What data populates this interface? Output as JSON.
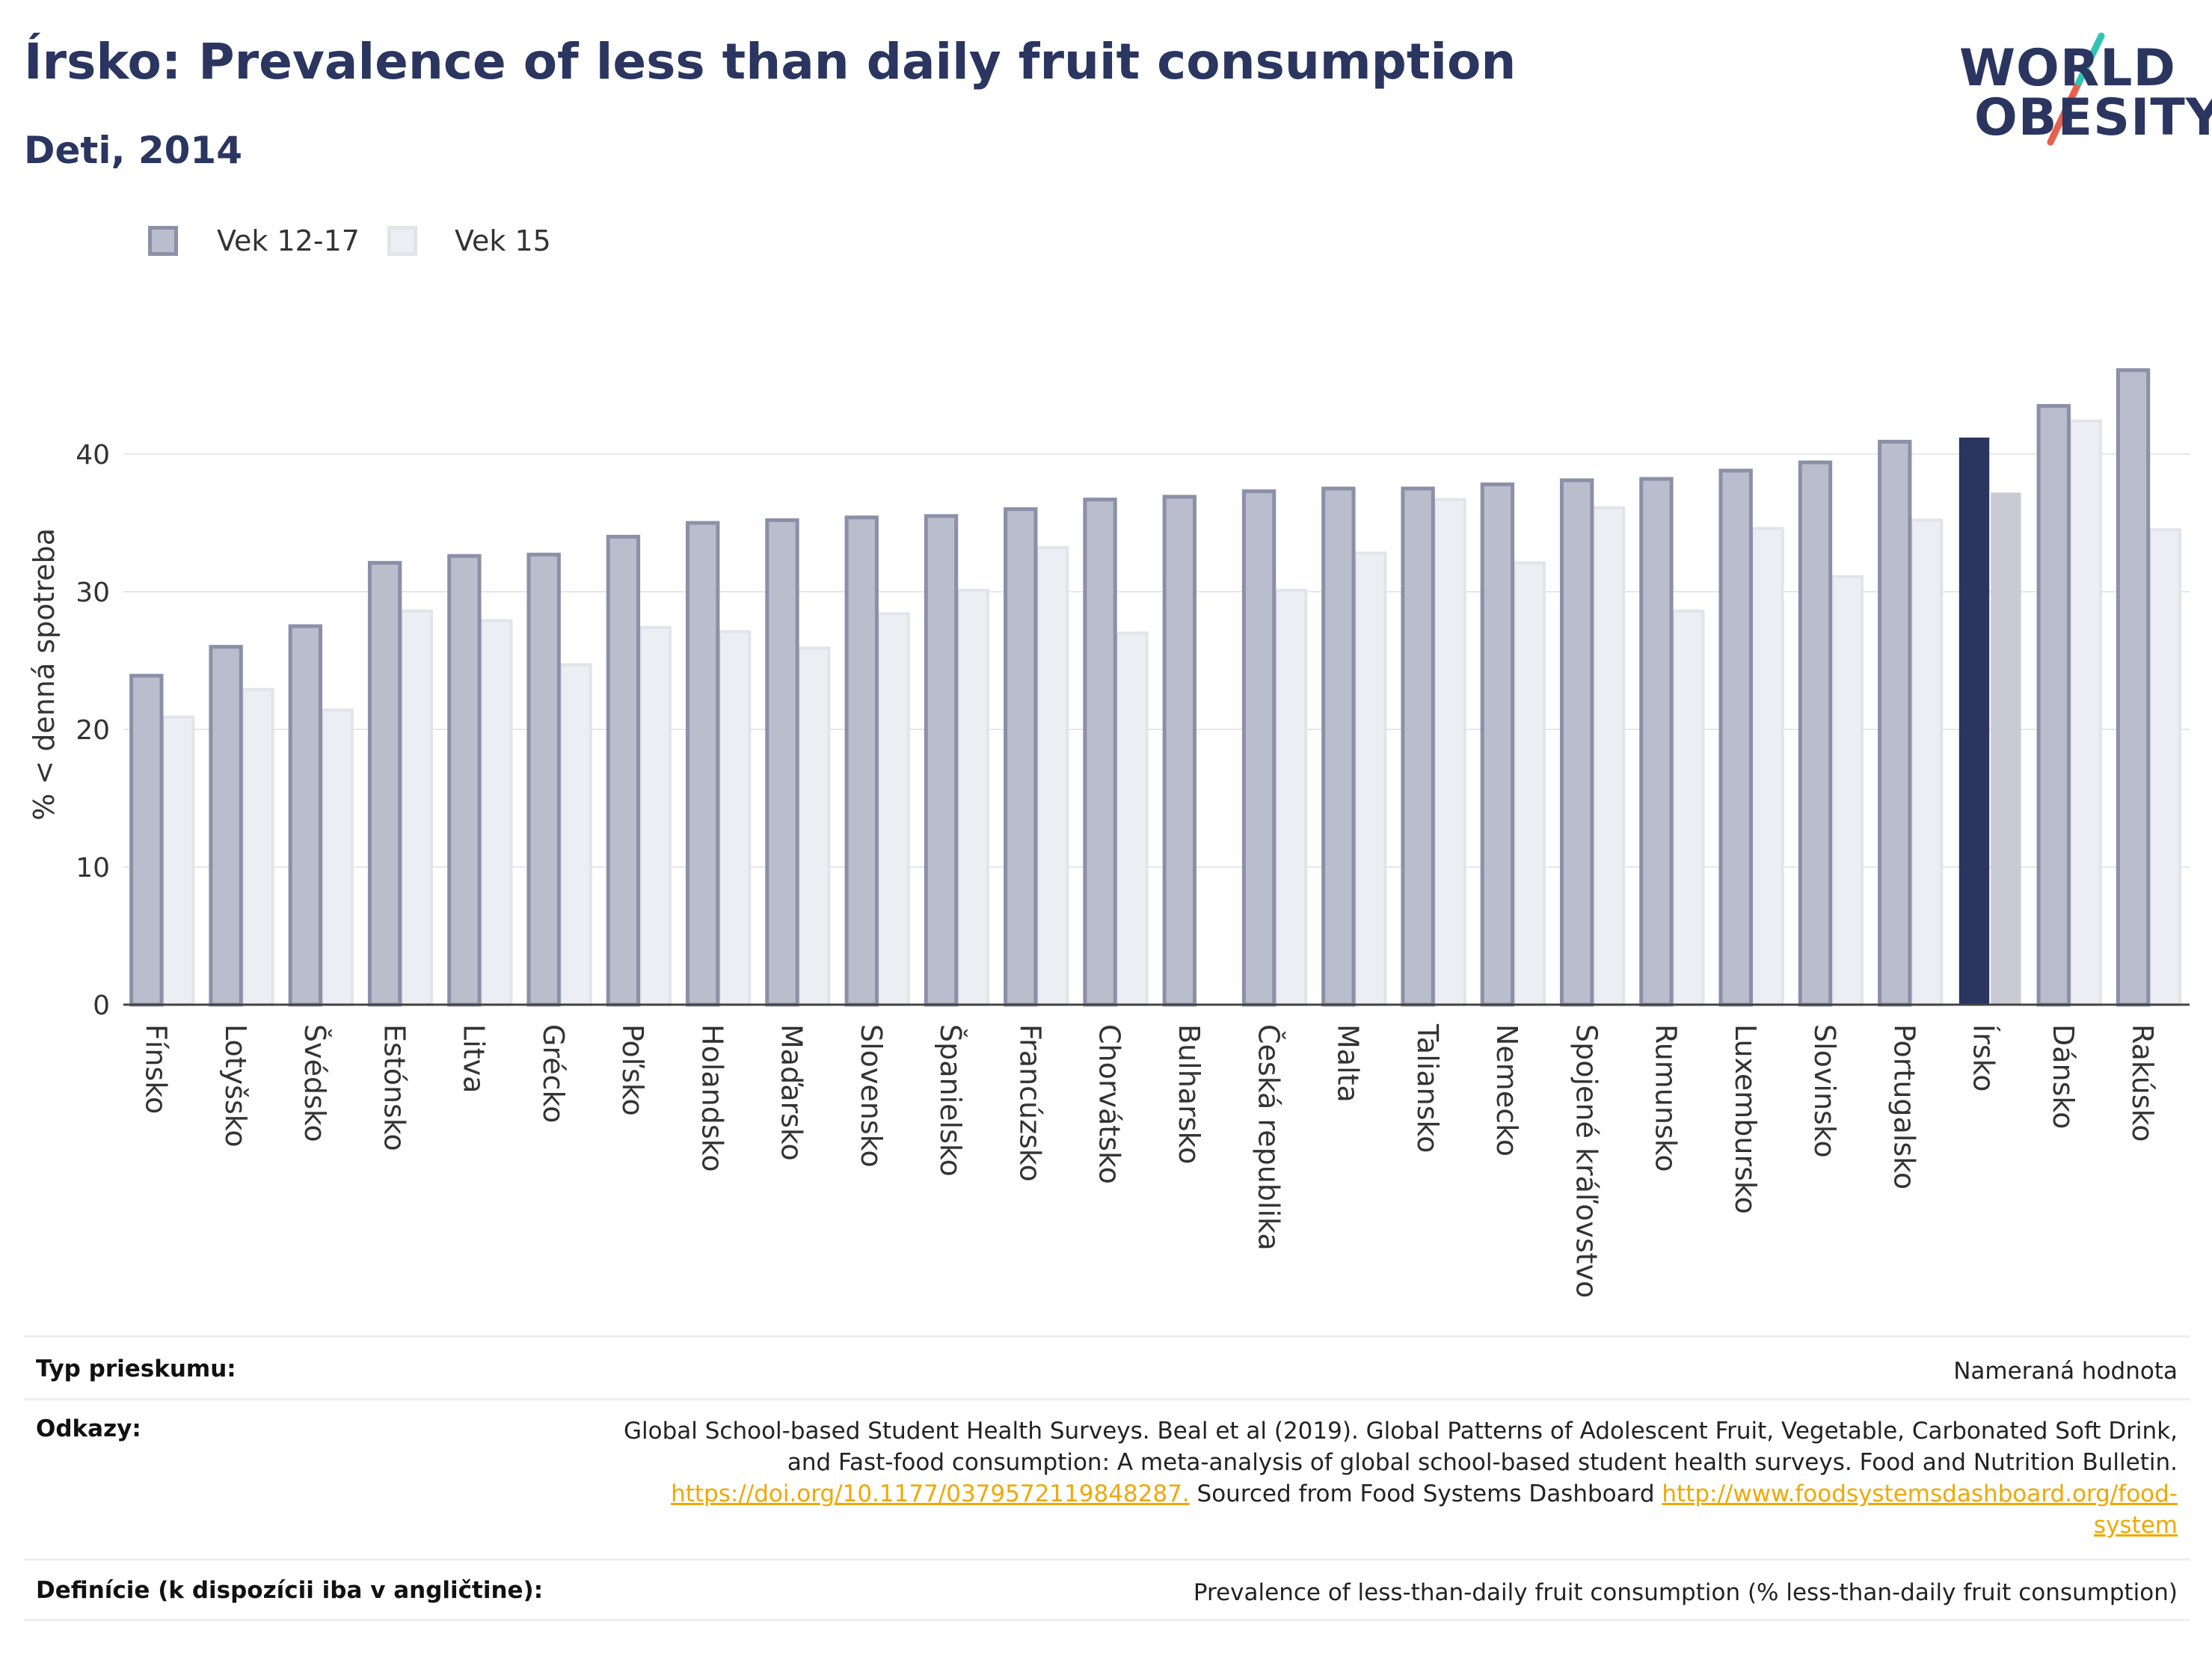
{
  "header": {
    "title": "Írsko: Prevalence of less than daily fruit consumption",
    "subtitle": "Deti, 2014"
  },
  "logo": {
    "line1": "WORLD",
    "line2": "OBESITY",
    "colors": {
      "text": "#2a3560",
      "slash_top": "#2ec4b6",
      "slash_bottom": "#e8604c"
    }
  },
  "legend": [
    {
      "label": "Vek 12-17",
      "fill": "#b9bdcc",
      "stroke": "#8b90a8"
    },
    {
      "label": "Vek 15",
      "fill": "#eceef3",
      "stroke": "#e2e4ea"
    }
  ],
  "chart_data": {
    "type": "bar",
    "ylabel": "% < denná spotreba",
    "xlabel": "",
    "ylim": [
      0,
      48
    ],
    "yticks": [
      0,
      10,
      20,
      30,
      40
    ],
    "grid": true,
    "legend_position": "top-left",
    "highlight_category": "Írsko",
    "highlight_colors": {
      "primary": "#2a3560",
      "secondary": "#c9cad4"
    },
    "categories": [
      "Fínsko",
      "Lotyšsko",
      "Švédsko",
      "Estónsko",
      "Litva",
      "Grécko",
      "Poľsko",
      "Holandsko",
      "Maďarsko",
      "Slovensko",
      "Španielsko",
      "Francúzsko",
      "Chorvátsko",
      "Bulharsko",
      "Česká republika",
      "Malta",
      "Taliansko",
      "Nemecko",
      "Spojené kráľovstvo",
      "Rumunsko",
      "Luxembursko",
      "Slovinsko",
      "Portugalsko",
      "Írsko",
      "Dánsko",
      "Rakúsko"
    ],
    "series": [
      {
        "name": "Vek 12-17",
        "values": [
          23.9,
          26.0,
          27.5,
          32.1,
          32.6,
          32.7,
          34.0,
          35.0,
          35.2,
          35.4,
          35.5,
          36.0,
          36.7,
          36.9,
          37.3,
          37.5,
          37.5,
          37.8,
          38.1,
          38.2,
          38.8,
          39.4,
          40.9,
          41.2,
          43.5,
          46.1
        ]
      },
      {
        "name": "Vek 15",
        "values": [
          20.9,
          22.9,
          21.4,
          28.6,
          27.9,
          24.7,
          27.4,
          27.1,
          25.9,
          28.4,
          30.1,
          33.2,
          27.0,
          null,
          30.1,
          32.8,
          36.7,
          32.1,
          36.1,
          28.6,
          34.6,
          31.1,
          35.2,
          37.2,
          42.4,
          34.5
        ]
      }
    ]
  },
  "footer": {
    "survey_type_label": "Typ prieskumu:",
    "survey_type_value": "Nameraná hodnota",
    "references_label": "Odkazy:",
    "references_text_1": "Global School-based Student Health Surveys. Beal et al (2019). Global Patterns of Adolescent Fruit, Vegetable, Carbonated Soft Drink, and Fast-food consumption: A meta-analysis of global school-based student health surveys. Food and Nutrition Bulletin.",
    "references_link_1": "https://doi.org/10.1177/0379572119848287.",
    "references_text_2": " Sourced from Food Systems Dashboard ",
    "references_link_2": "http://www.foodsystemsdashboard.org/food-system",
    "definitions_label": "Definície (k dispozícii iba v angličtine):",
    "definitions_value": "Prevalence of less-than-daily fruit consumption (% less-than-daily fruit consumption)"
  }
}
